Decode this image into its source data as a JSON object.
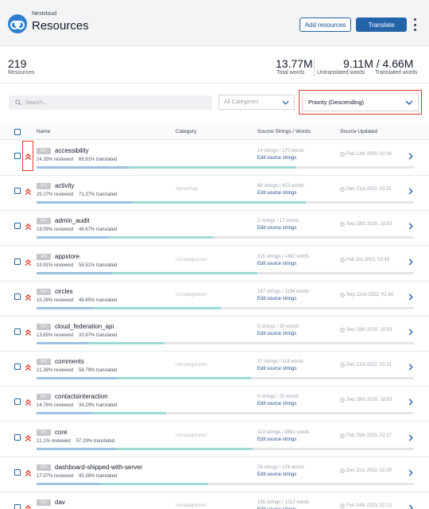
{
  "header": {
    "brand": "Nextcloud",
    "title": "Resources",
    "add_resources_label": "Add resources",
    "translate_label": "Translate"
  },
  "stats": {
    "resources_count": "219",
    "resources_label": "Resources",
    "total_words": "13.77M",
    "total_words_label": "Total words",
    "untranslated_translated": "9.11M / 4.66M",
    "untranslated_label": "Untranslated words",
    "translated_label": "Translated words"
  },
  "filters": {
    "search_placeholder": "Search...",
    "category_value": "All Categories",
    "sort_value": "Priority (Descending)"
  },
  "table": {
    "headers": {
      "name": "Name",
      "category": "Category",
      "source": "Source Strings / Words",
      "updated": "Source Updated"
    },
    "badge_label": "PO",
    "edit_label": "Edit source strings",
    "rows": [
      {
        "name": "accessibility",
        "reviewed": "24.35% reviewed",
        "translated": "68.91% translated",
        "category": "",
        "source": "14 strings / 170 words",
        "updated": "Feb 13th 2020, 02:06",
        "reviewed_pct": 24.35,
        "translated_pct": 68.91
      },
      {
        "name": "activity",
        "reviewed": "25.27% reviewed",
        "translated": "71.37% translated",
        "category": "ServerApp",
        "source": "68 strings / 423 words",
        "updated": "Dec 21st 2022, 02:31",
        "reviewed_pct": 25.27,
        "translated_pct": 71.37
      },
      {
        "name": "admin_audit",
        "reviewed": "19.05% reviewed",
        "translated": "46.67% translated",
        "category": "",
        "source": "2 strings / 17 words",
        "updated": "Sep 18th 2020, 18:53",
        "reviewed_pct": 19.05,
        "translated_pct": 46.67
      },
      {
        "name": "appstore",
        "reviewed": "19.91% reviewed",
        "translated": "58.51% translated",
        "category": "Uncategorized",
        "source": "315 strings / 1492 words",
        "updated": "Feb 3rd 2023, 03:49",
        "reviewed_pct": 19.91,
        "translated_pct": 58.51
      },
      {
        "name": "circles",
        "reviewed": "15.26% reviewed",
        "translated": "48.85% translated",
        "category": "Uncategorized",
        "source": "187 strings / 1194 words",
        "updated": "Sep 22nd 2022, 02:40",
        "reviewed_pct": 15.26,
        "translated_pct": 48.85
      },
      {
        "name": "cloud_federation_api",
        "reviewed": "13.65% reviewed",
        "translated": "33.97% translated",
        "category": "",
        "source": "3 strings / 30 words",
        "updated": "Sep 18th 2020, 18:53",
        "reviewed_pct": 13.65,
        "translated_pct": 33.97
      },
      {
        "name": "comments",
        "reviewed": "21.38% reviewed",
        "translated": "56.79% translated",
        "category": "Uncategorized",
        "source": "27 strings / 118 words",
        "updated": "Dec 21st 2022, 02:21",
        "reviewed_pct": 21.38,
        "translated_pct": 56.79
      },
      {
        "name": "contactsinteraction",
        "reviewed": "14.76% reviewed",
        "translated": "34.29% translated",
        "category": "",
        "source": "4 strings / 25 words",
        "updated": "Sep 18th 2020, 18:53",
        "reviewed_pct": 14.76,
        "translated_pct": 34.29
      },
      {
        "name": "core",
        "reviewed": "21.1% reviewed",
        "translated": "57.29% translated",
        "category": "Uncategorized",
        "source": "423 strings / 3891 words",
        "updated": "Feb 25th 2023, 02:17",
        "reviewed_pct": 21.1,
        "translated_pct": 57.29
      },
      {
        "name": "dashboard-shipped-with-server",
        "reviewed": "17.07% reviewed",
        "translated": "45.38% translated",
        "category": "",
        "source": "26 strings / 129 words",
        "updated": "Dec 21st 2022, 02:20",
        "reviewed_pct": 17.07,
        "translated_pct": 45.38
      },
      {
        "name": "dav",
        "reviewed": "",
        "translated": "",
        "category": "Uncategorized",
        "source": "195 strings / 1012 words",
        "updated": "Feb 14th 2023, 02:12",
        "reviewed_pct": 0,
        "translated_pct": 0
      }
    ]
  }
}
